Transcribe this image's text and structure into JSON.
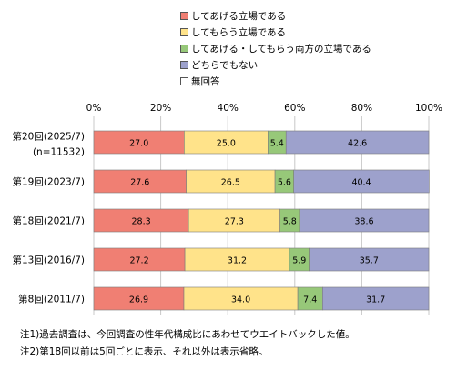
{
  "chart_data": {
    "type": "bar",
    "orientation": "horizontal",
    "stacked": true,
    "xlim": [
      0,
      100
    ],
    "x_ticks": [
      "0%",
      "20%",
      "40%",
      "60%",
      "80%",
      "100%"
    ],
    "grid": true,
    "categories": [
      {
        "label": "第20回(2025/7)",
        "sublabel": "(n=11532)"
      },
      {
        "label": "第19回(2023/7)"
      },
      {
        "label": "第18回(2021/7)"
      },
      {
        "label": "第13回(2016/7)"
      },
      {
        "label": "第8回(2011/7)"
      }
    ],
    "series": [
      {
        "name": "してあげる立場である",
        "color": "#F07F73",
        "values": [
          27.0,
          27.6,
          28.3,
          27.2,
          26.9
        ],
        "labels": [
          "27.0",
          "27.6",
          "28.3",
          "27.2",
          "26.9"
        ]
      },
      {
        "name": "してもらう立場である",
        "color": "#FFE38A",
        "values": [
          25.0,
          26.5,
          27.3,
          31.2,
          34.0
        ],
        "labels": [
          "25.0",
          "26.5",
          "27.3",
          "31.2",
          "34.0"
        ]
      },
      {
        "name": "してあげる・してもらう両方の立場である",
        "color": "#97C879",
        "values": [
          5.4,
          5.6,
          5.8,
          5.9,
          7.4
        ],
        "labels": [
          "5.4",
          "5.6",
          "5.8",
          "5.9",
          "7.4"
        ]
      },
      {
        "name": "どちらでもない",
        "color": "#9DA1CC",
        "values": [
          42.6,
          40.4,
          38.6,
          35.7,
          31.7
        ],
        "labels": [
          "42.6",
          "40.4",
          "38.6",
          "35.7",
          "31.7"
        ]
      },
      {
        "name": "無回答",
        "color": "#FFFFFF",
        "values": [
          0,
          0,
          0,
          0,
          0
        ],
        "labels": []
      }
    ],
    "legend_position": "top",
    "notes": [
      "注1)過去調査は、今回調査の性年代構成比にあわせてウエイトバックした値。",
      "注2)第18回以前は5回ごとに表示、それ以外は表示省略。"
    ]
  }
}
